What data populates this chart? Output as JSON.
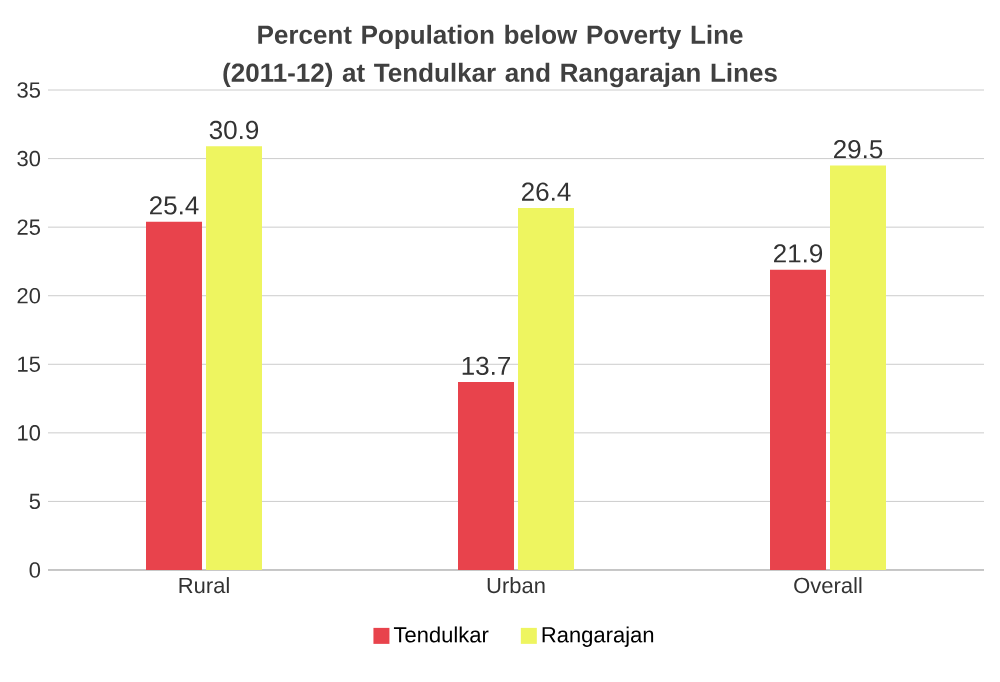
{
  "chart_data": {
    "type": "bar",
    "title": "Percent Population below Poverty Line (2011-12) at Tendulkar and Rangarajan Lines",
    "categories": [
      "Rural",
      "Urban",
      "Overall"
    ],
    "series": [
      {
        "name": "Tendulkar",
        "color": "#e8434c",
        "values": [
          25.4,
          13.7,
          21.9
        ]
      },
      {
        "name": "Rangarajan",
        "color": "#eef560",
        "values": [
          30.9,
          26.4,
          29.5
        ]
      }
    ],
    "ylim": [
      0,
      35
    ],
    "yticks": [
      0,
      5,
      10,
      15,
      20,
      25,
      30,
      35
    ],
    "grid": "y",
    "legend": "bottom",
    "data_labels": true
  }
}
